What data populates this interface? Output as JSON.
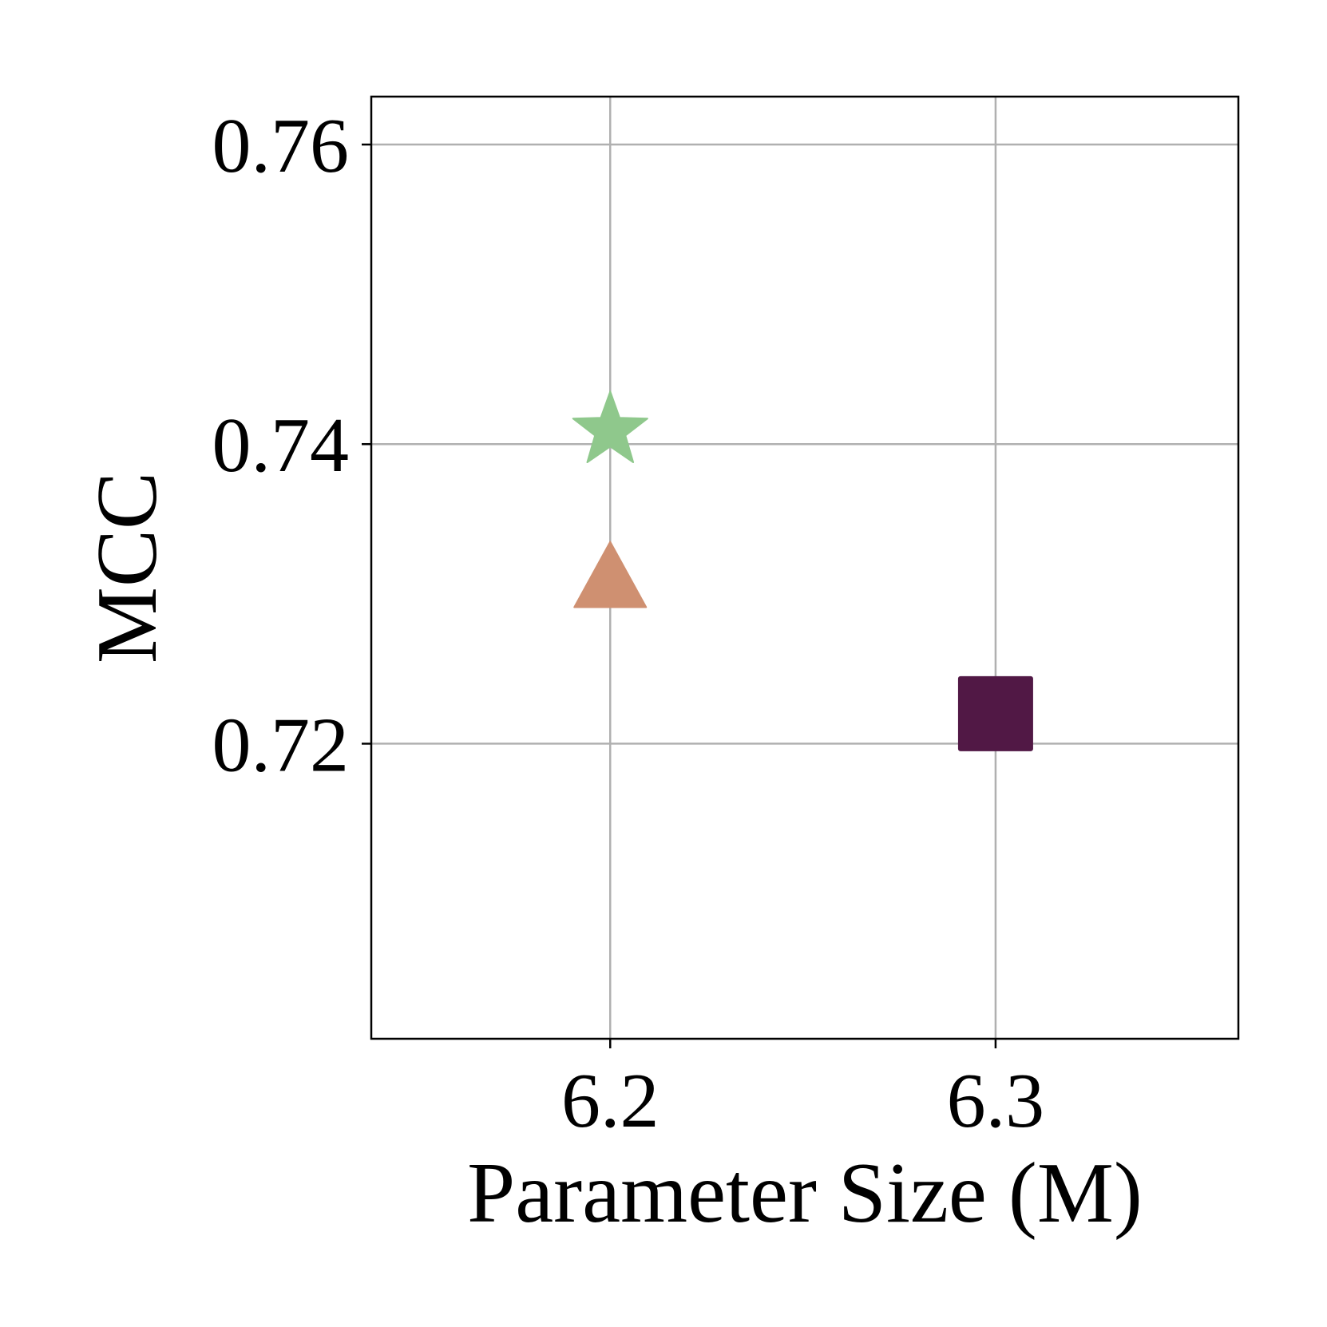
{
  "chart_data": {
    "type": "scatter",
    "title": "",
    "xlabel": "Parameter Size (M)",
    "ylabel": "MCC",
    "xlim": [
      6.138,
      6.363
    ],
    "ylim": [
      0.7003,
      0.7632
    ],
    "xticks": [
      {
        "value": 6.2,
        "label": "6.2"
      },
      {
        "value": 6.3,
        "label": "6.3"
      }
    ],
    "yticks": [
      {
        "value": 0.72,
        "label": "0.72"
      },
      {
        "value": 0.74,
        "label": "0.74"
      },
      {
        "value": 0.76,
        "label": "0.76"
      }
    ],
    "grid": true,
    "legend": null,
    "points": [
      {
        "x": 6.2,
        "y": 0.7409,
        "marker": "star",
        "color": "#8fc88c"
      },
      {
        "x": 6.2,
        "y": 0.7306,
        "marker": "triangle",
        "color": "#cf9071"
      },
      {
        "x": 6.3,
        "y": 0.722,
        "marker": "square",
        "color": "#511845"
      }
    ]
  }
}
